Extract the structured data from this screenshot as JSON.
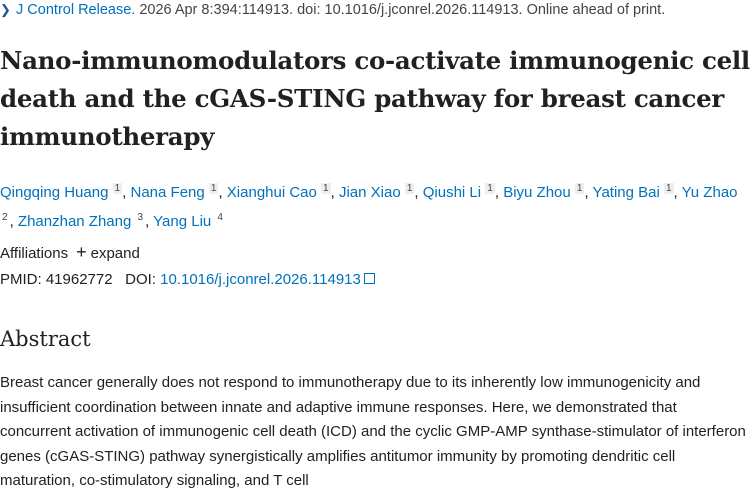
{
  "citation": {
    "journal": "J Control Release.",
    "details": " 2026 Apr 8:394:114913. doi: 10.1016/j.jconrel.2026.114913. Online ahead of print."
  },
  "title": "Nano-immunomodulators co-activate immunogenic cell death and the cGAS-STING pathway for breast cancer immunotherapy",
  "authors": [
    {
      "name": "Qingqing Huang",
      "aff": "1"
    },
    {
      "name": "Nana Feng",
      "aff": "1"
    },
    {
      "name": "Xianghui Cao",
      "aff": "1"
    },
    {
      "name": "Jian Xiao",
      "aff": "1"
    },
    {
      "name": "Qiushi Li",
      "aff": "1"
    },
    {
      "name": "Biyu Zhou",
      "aff": "1"
    },
    {
      "name": "Yating Bai",
      "aff": "1"
    },
    {
      "name": "Yu Zhao",
      "aff": "2"
    },
    {
      "name": "Zhanzhan Zhang",
      "aff": "3"
    },
    {
      "name": "Yang Liu",
      "aff": "4"
    }
  ],
  "affiliations": {
    "label": "Affiliations",
    "toggle": "expand"
  },
  "ids": {
    "pmid_label": "PMID:",
    "pmid": "41962772",
    "doi_label": "DOI:",
    "doi": "10.1016/j.jconrel.2026.114913"
  },
  "abstract": {
    "heading": "Abstract",
    "text": "Breast cancer generally does not respond to immunotherapy due to its inherently low immunogenicity and insufficient coordination between innate and adaptive immune responses. Here, we demonstrated that concurrent activation of immunogenic cell death (ICD) and the cyclic GMP-AMP synthase-stimulator of interferon genes (cGAS-STING) pathway synergistically amplifies antitumor immunity by promoting dendritic cell maturation, co-stimulatory signaling, and T cell"
  }
}
